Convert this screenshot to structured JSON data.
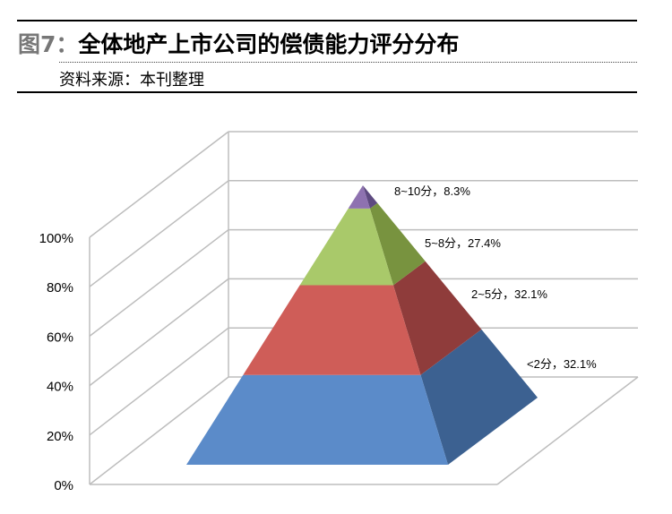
{
  "header": {
    "figure_label": "图7：",
    "title": "全体地产上市公司的偿债能力评分分布",
    "source": "资料来源：本刊整理"
  },
  "chart_data": {
    "type": "pyramid-3d-stacked",
    "categories": [
      "<2分",
      "2~5分",
      "5~8分",
      "8~10分"
    ],
    "values": [
      32.1,
      32.1,
      27.4,
      8.3
    ],
    "data_labels": [
      "<2分，32.1%",
      "2~5分，32.1%",
      "5~8分，27.4%",
      "8~10分，8.3%"
    ],
    "y_ticks": [
      "0%",
      "20%",
      "40%",
      "60%",
      "80%",
      "100%"
    ],
    "ylim": [
      0,
      100
    ],
    "grid": true,
    "colors": {
      "front": [
        "#5b8bc9",
        "#cf5d58",
        "#a9c96a",
        "#8e72b0"
      ],
      "side": [
        "#3c6191",
        "#8f3c3b",
        "#78933f",
        "#5e4a80"
      ]
    }
  }
}
